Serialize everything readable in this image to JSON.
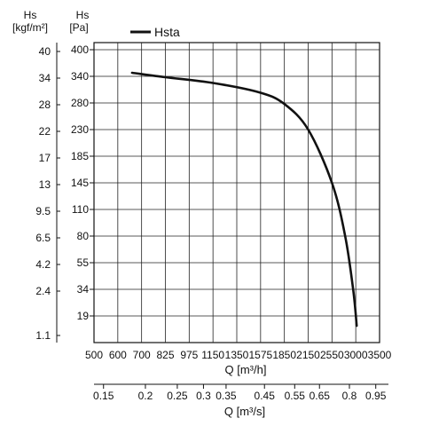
{
  "chart_data": {
    "type": "line",
    "legend": {
      "label": "Hsta",
      "placement": "top-left"
    },
    "grid": true,
    "y_primary": {
      "header_line1": "Hs",
      "header_line2": "[Pa]",
      "ticks": [
        "400",
        "340",
        "280",
        "230",
        "185",
        "145",
        "110",
        "80",
        "55",
        "34",
        "19"
      ]
    },
    "y_secondary": {
      "header_line1": "Hs",
      "header_line2": "[kgf/m²]",
      "ticks": [
        "40",
        "34",
        "28",
        "22",
        "17",
        "13",
        "9.5",
        "6.5",
        "4.2",
        "2.4",
        "1.1"
      ]
    },
    "x_primary": {
      "label": "Q [m³/h]",
      "ticks": [
        "500",
        "600",
        "700",
        "825",
        "975",
        "1150",
        "1350",
        "1575",
        "1850",
        "2150",
        "2550",
        "3000",
        "3500"
      ]
    },
    "x_secondary": {
      "label": "Q [m³/s]",
      "ticks": [
        "0.15",
        "0.2",
        "0.25",
        "0.3",
        "0.35",
        "0.45",
        "0.55",
        "0.65",
        "0.8",
        "0.95"
      ],
      "tick_positions_m3h": [
        540,
        720,
        900,
        1080,
        1260,
        1620,
        1980,
        2340,
        2880,
        3420
      ]
    },
    "series": [
      {
        "name": "Hsta",
        "points": [
          {
            "q": 660,
            "hs": 348
          },
          {
            "q": 825,
            "hs": 338
          },
          {
            "q": 1150,
            "hs": 325
          },
          {
            "q": 1575,
            "hs": 303
          },
          {
            "q": 1850,
            "hs": 278
          },
          {
            "q": 2150,
            "hs": 230
          },
          {
            "q": 2550,
            "hs": 145
          },
          {
            "q": 2800,
            "hs": 80
          },
          {
            "q": 2950,
            "hs": 34
          },
          {
            "q": 3020,
            "hs": 12
          }
        ]
      }
    ]
  }
}
